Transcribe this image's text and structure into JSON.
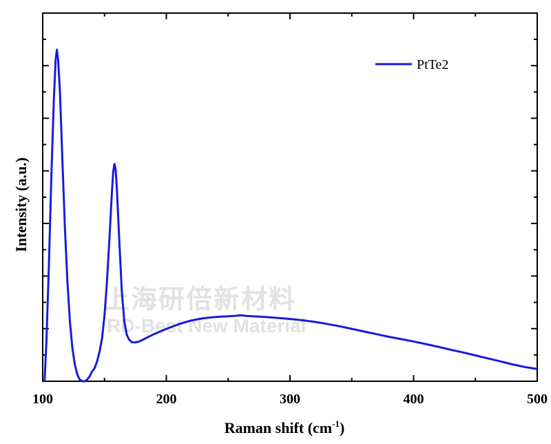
{
  "chart_data": {
    "type": "line",
    "xlabel": "Raman shift (cm",
    "xlabel_sup": "-1",
    "xlabel_close": ")",
    "ylabel": "Intensity (a.u.)",
    "xlim": [
      100,
      500
    ],
    "ylim": [
      0,
      1
    ],
    "x_ticks": [
      "100",
      "200",
      "300",
      "400",
      "500"
    ],
    "y_tick_labels": "none",
    "grid": false,
    "legend_position": "top-right",
    "series": [
      {
        "name": "PtTe2",
        "color": "#1a1adc",
        "points": [
          [
            101.5,
            0.0
          ],
          [
            103,
            0.12
          ],
          [
            105,
            0.35
          ],
          [
            107,
            0.62
          ],
          [
            109,
            0.85
          ],
          [
            110.5,
            0.97
          ],
          [
            111.5,
            1.0
          ],
          [
            112.5,
            0.97
          ],
          [
            114,
            0.87
          ],
          [
            116,
            0.66
          ],
          [
            118,
            0.46
          ],
          [
            120,
            0.3
          ],
          [
            122,
            0.18
          ],
          [
            124,
            0.1
          ],
          [
            126,
            0.05
          ],
          [
            128,
            0.02
          ],
          [
            130,
            0.005
          ],
          [
            132,
            0.0
          ],
          [
            134,
            0.0
          ],
          [
            136,
            0.005
          ],
          [
            138,
            0.015
          ],
          [
            140,
            0.03
          ],
          [
            142,
            0.04
          ],
          [
            144,
            0.06
          ],
          [
            146,
            0.09
          ],
          [
            148,
            0.13
          ],
          [
            150,
            0.2
          ],
          [
            152,
            0.3
          ],
          [
            154,
            0.43
          ],
          [
            156,
            0.57
          ],
          [
            157,
            0.63
          ],
          [
            158,
            0.655
          ],
          [
            159,
            0.64
          ],
          [
            160,
            0.58
          ],
          [
            162,
            0.42
          ],
          [
            164,
            0.27
          ],
          [
            166,
            0.18
          ],
          [
            168,
            0.14
          ],
          [
            170,
            0.125
          ],
          [
            172,
            0.118
          ],
          [
            175,
            0.117
          ],
          [
            178,
            0.12
          ],
          [
            182,
            0.127
          ],
          [
            186,
            0.135
          ],
          [
            190,
            0.142
          ],
          [
            195,
            0.15
          ],
          [
            200,
            0.158
          ],
          [
            205,
            0.165
          ],
          [
            210,
            0.172
          ],
          [
            215,
            0.178
          ],
          [
            220,
            0.183
          ],
          [
            225,
            0.187
          ],
          [
            230,
            0.19
          ],
          [
            235,
            0.192
          ],
          [
            240,
            0.194
          ],
          [
            245,
            0.195
          ],
          [
            250,
            0.196
          ],
          [
            255,
            0.197
          ],
          [
            260,
            0.199
          ],
          [
            265,
            0.197
          ],
          [
            270,
            0.196
          ],
          [
            275,
            0.195
          ],
          [
            280,
            0.194
          ],
          [
            290,
            0.191
          ],
          [
            300,
            0.188
          ],
          [
            310,
            0.184
          ],
          [
            320,
            0.179
          ],
          [
            330,
            0.173
          ],
          [
            340,
            0.166
          ],
          [
            350,
            0.158
          ],
          [
            360,
            0.15
          ],
          [
            370,
            0.142
          ],
          [
            380,
            0.134
          ],
          [
            390,
            0.127
          ],
          [
            400,
            0.12
          ],
          [
            410,
            0.112
          ],
          [
            420,
            0.104
          ],
          [
            430,
            0.095
          ],
          [
            440,
            0.087
          ],
          [
            450,
            0.078
          ],
          [
            460,
            0.069
          ],
          [
            470,
            0.06
          ],
          [
            480,
            0.051
          ],
          [
            490,
            0.043
          ],
          [
            500,
            0.037
          ]
        ]
      }
    ]
  },
  "watermark": {
    "line1": "上海研倍新材料",
    "line2": "RD-Best New Material"
  }
}
